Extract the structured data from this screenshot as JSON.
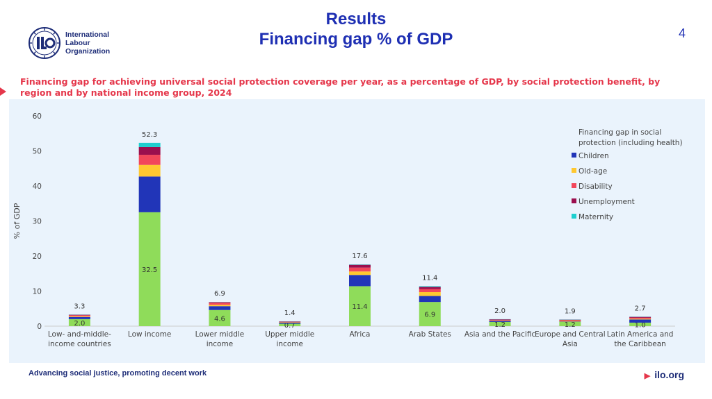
{
  "header": {
    "org_lines": [
      "International",
      "Labour",
      "Organization"
    ],
    "title_line1": "Results",
    "title_line2": "Financing gap % of GDP",
    "page_number": "4"
  },
  "subtitle": "Financing gap for achieving universal social protection coverage per year, as a percentage of GDP, by social protection benefit, by region and by national income group, 2024",
  "footer": {
    "tagline": "Advancing social justice, promoting decent work",
    "site": "ilo.org"
  },
  "colors": {
    "accent": "#e5374b",
    "title": "#1e2fb3",
    "navy": "#1e2d78"
  },
  "chart_data": {
    "type": "bar",
    "stacked": true,
    "ylabel": "% of GDP",
    "ylim": [
      0,
      60
    ],
    "yticks": [
      0,
      10,
      20,
      30,
      40,
      50,
      60
    ],
    "categories": [
      "Low- and-middle-\nincome countries",
      "Low income",
      "Lower middle\nincome",
      "Upper middle\nincome",
      "Africa",
      "Arab States",
      "Asia and the Pacific",
      "Europe and Central\nAsia",
      "Latin America and\nthe Caribbean"
    ],
    "legend_title": "Financing gap in social\nprotection (including health)",
    "legend_position": "right",
    "series": [
      {
        "name": "",
        "color": "#8fdc5a",
        "values": [
          2.0,
          32.5,
          4.6,
          0.7,
          11.4,
          6.9,
          1.2,
          1.2,
          1.0
        ],
        "labels": [
          "2.0",
          "32.5",
          "4.6",
          "0.7",
          "11.4",
          "6.9",
          "1.2",
          "1.2",
          "1.0"
        ]
      },
      {
        "name": "Children",
        "color": "#2135b8",
        "values": [
          0.6,
          10.2,
          1.1,
          0.3,
          3.2,
          1.7,
          0.3,
          0.1,
          0.9
        ]
      },
      {
        "name": "Old-age",
        "color": "#ffc830",
        "values": [
          0.2,
          3.3,
          0.4,
          0.1,
          1.0,
          1.1,
          0.1,
          0.2,
          0.2
        ]
      },
      {
        "name": "Disability",
        "color": "#f2465a",
        "values": [
          0.3,
          2.9,
          0.6,
          0.15,
          1.1,
          0.9,
          0.2,
          0.2,
          0.3
        ]
      },
      {
        "name": "Unemployment",
        "color": "#9b0f4e",
        "values": [
          0.15,
          2.2,
          0.15,
          0.1,
          0.8,
          0.6,
          0.15,
          0.15,
          0.25
        ]
      },
      {
        "name": "Maternity",
        "color": "#1ecfcf",
        "values": [
          0.05,
          1.2,
          0.05,
          0.05,
          0.1,
          0.2,
          0.05,
          0.05,
          0.05
        ]
      }
    ],
    "totals": [
      "3.3",
      "52.3",
      "6.9",
      "1.4",
      "17.6",
      "11.4",
      "2.0",
      "1.9",
      "2.7"
    ]
  }
}
